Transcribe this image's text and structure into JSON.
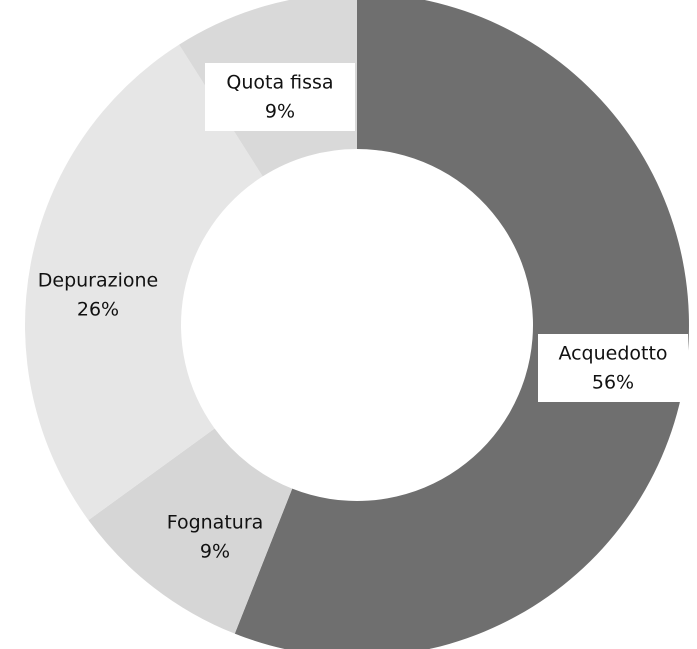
{
  "chart_data": {
    "type": "donut",
    "categories": [
      "Acquedotto",
      "Fognatura",
      "Depurazione",
      "Quota fissa"
    ],
    "values": [
      56,
      9,
      26,
      9
    ],
    "value_labels": [
      "56%",
      "9%",
      "26%",
      "9%"
    ],
    "colors": [
      "#6f6f6f",
      "#d6d6d6",
      "#e6e6e6",
      "#d9d9d9"
    ]
  }
}
